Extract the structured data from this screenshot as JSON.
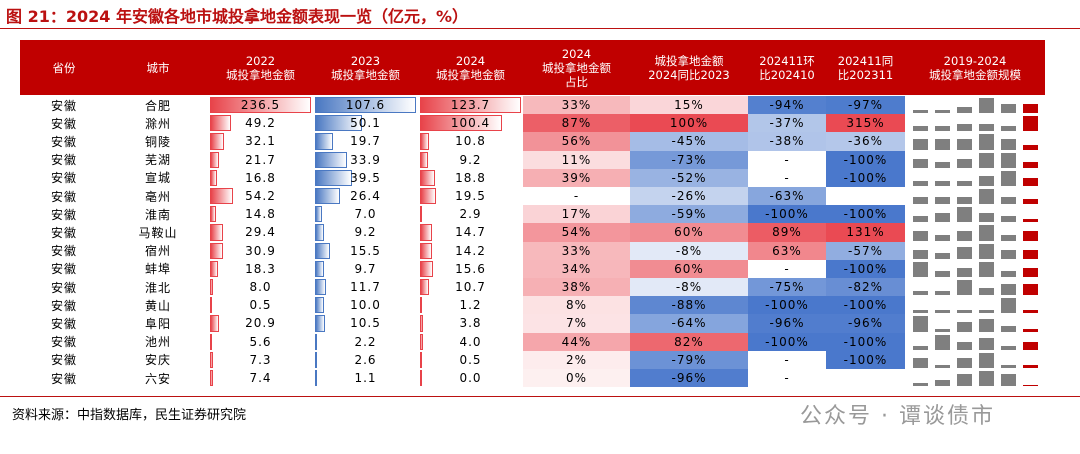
{
  "title": "图 21：2024 年安徽各地市城投拿地金额表现一览（亿元，%）",
  "table": {
    "headers": [
      "省份",
      "城市",
      "2022\n城投拿地金额",
      "2023\n城投拿地金额",
      "2024\n城投拿地金额",
      "2024\n城投拿地金额\n占比",
      "城投拿地金额\n2024同比2023",
      "202411环\n比202410",
      "202411同\n比202311",
      "2019-2024\n城投拿地金额规模"
    ],
    "rows": [
      [
        "安徽",
        "合肥",
        "236.5",
        "107.6",
        "123.7",
        "33%",
        "15%",
        "-94%",
        "-97%"
      ],
      [
        "安徽",
        "滁州",
        "49.2",
        "50.1",
        "100.4",
        "87%",
        "100%",
        "-37%",
        "315%"
      ],
      [
        "安徽",
        "铜陵",
        "32.1",
        "19.7",
        "10.8",
        "56%",
        "-45%",
        "-38%",
        "-36%"
      ],
      [
        "安徽",
        "芜湖",
        "21.7",
        "33.9",
        "9.2",
        "11%",
        "-73%",
        "-",
        "-100%"
      ],
      [
        "安徽",
        "宣城",
        "16.8",
        "39.5",
        "18.8",
        "39%",
        "-52%",
        "-",
        "-100%"
      ],
      [
        "安徽",
        "亳州",
        "54.2",
        "26.4",
        "19.5",
        "-",
        "-26%",
        "-63%",
        null
      ],
      [
        "安徽",
        "淮南",
        "14.8",
        "7.0",
        "2.9",
        "17%",
        "-59%",
        "-100%",
        "-100%"
      ],
      [
        "安徽",
        "马鞍山",
        "29.4",
        "9.2",
        "14.7",
        "54%",
        "60%",
        "89%",
        "131%"
      ],
      [
        "安徽",
        "宿州",
        "30.9",
        "15.5",
        "14.2",
        "33%",
        "-8%",
        "63%",
        "-57%"
      ],
      [
        "安徽",
        "蚌埠",
        "18.3",
        "9.7",
        "15.6",
        "34%",
        "60%",
        "-",
        "-100%"
      ],
      [
        "安徽",
        "淮北",
        "8.0",
        "11.7",
        "10.7",
        "38%",
        "-8%",
        "-75%",
        "-82%"
      ],
      [
        "安徽",
        "黄山",
        "0.5",
        "10.0",
        "1.2",
        "8%",
        "-88%",
        "-100%",
        "-100%"
      ],
      [
        "安徽",
        "阜阳",
        "20.9",
        "10.5",
        "3.8",
        "7%",
        "-64%",
        "-96%",
        "-96%"
      ],
      [
        "安徽",
        "池州",
        "5.6",
        "2.2",
        "4.0",
        "44%",
        "82%",
        "-100%",
        "-100%"
      ],
      [
        "安徽",
        "安庆",
        "7.3",
        "2.6",
        "0.5",
        "2%",
        "-79%",
        "-",
        "-100%"
      ],
      [
        "安徽",
        "六安",
        "7.4",
        "1.1",
        "0.0",
        "0%",
        "-96%",
        "-",
        null
      ]
    ],
    "trend": [
      [
        1,
        1,
        2,
        5,
        3,
        3
      ],
      [
        2,
        2,
        3,
        3,
        2,
        6
      ],
      [
        2,
        2,
        2,
        3,
        2,
        1
      ],
      [
        3,
        2,
        3,
        5,
        5,
        2
      ],
      [
        2,
        2,
        2,
        4,
        6,
        3
      ],
      [
        3,
        3,
        3,
        6,
        3,
        2
      ],
      [
        2,
        3,
        5,
        3,
        2,
        1
      ],
      [
        3,
        2,
        3,
        5,
        2,
        3
      ],
      [
        3,
        2,
        4,
        5,
        3,
        3
      ],
      [
        5,
        2,
        3,
        5,
        2,
        3
      ],
      [
        1,
        1,
        4,
        2,
        3,
        3
      ],
      [
        1,
        1,
        1,
        1,
        5,
        1
      ],
      [
        5,
        1,
        3,
        4,
        2,
        1
      ],
      [
        1,
        4,
        2,
        3,
        1,
        2
      ],
      [
        4,
        1,
        4,
        6,
        1,
        1
      ],
      [
        1,
        2,
        4,
        5,
        4,
        0
      ]
    ]
  },
  "source": "资料来源：中指数据库，民生证券研究院",
  "watermark": "公众号 · 谭谈债市"
}
